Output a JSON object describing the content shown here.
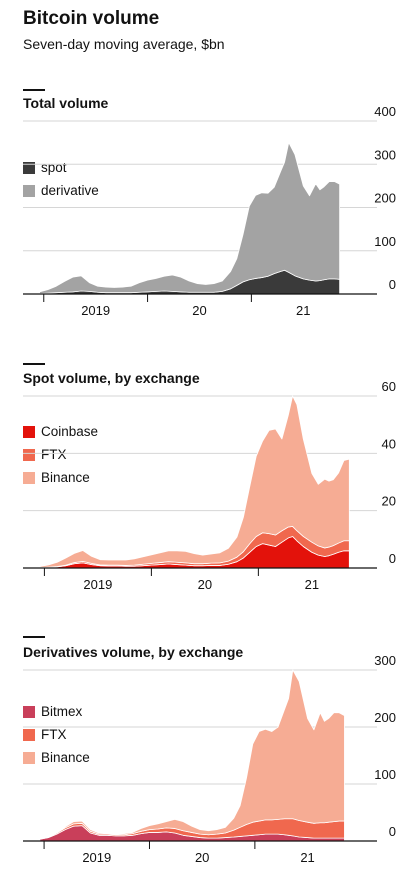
{
  "title": "Bitcoin volume",
  "subtitle": "Seven-day moving average, $bn",
  "colors": {
    "spot": "#3a3a3a",
    "derivative": "#a3a3a3",
    "coinbase": "#e3120b",
    "ftx": "#f0684e",
    "binance": "#f6ac94",
    "bitmex": "#c93f5a",
    "grid": "#d6d6d6",
    "axis": "#121212"
  },
  "chart_data": [
    {
      "type": "area",
      "stacked": true,
      "title": "Total volume",
      "x": [
        2018.96,
        2019.04,
        2019.12,
        2019.2,
        2019.28,
        2019.36,
        2019.44,
        2019.52,
        2019.6,
        2019.68,
        2019.76,
        2019.84,
        2019.92,
        2020.0,
        2020.08,
        2020.16,
        2020.24,
        2020.32,
        2020.4,
        2020.48,
        2020.56,
        2020.64,
        2020.72,
        2020.8,
        2020.86,
        2020.92,
        2020.98,
        2021.04,
        2021.1,
        2021.16,
        2021.22,
        2021.28,
        2021.32,
        2021.36,
        2021.42,
        2021.5,
        2021.56,
        2021.62,
        2021.66,
        2021.7,
        2021.75,
        2021.8,
        2021.85
      ],
      "series": [
        {
          "name": "spot",
          "color_key": "spot",
          "values": [
            1,
            2,
            3,
            4,
            5,
            7,
            6,
            4,
            3,
            3,
            3,
            3,
            4,
            5,
            6,
            7,
            6,
            5,
            4,
            4,
            4,
            4,
            6,
            12,
            20,
            28,
            33,
            36,
            38,
            41,
            47,
            52,
            55,
            50,
            42,
            35,
            32,
            30,
            31,
            33,
            35,
            35,
            34
          ]
        },
        {
          "name": "derivative",
          "color_key": "derivative",
          "values": [
            4,
            8,
            15,
            25,
            34,
            35,
            20,
            14,
            13,
            12,
            13,
            15,
            22,
            27,
            30,
            34,
            38,
            34,
            26,
            20,
            18,
            20,
            24,
            40,
            62,
            110,
            170,
            192,
            196,
            192,
            200,
            230,
            250,
            300,
            280,
            215,
            195,
            225,
            210,
            215,
            225,
            225,
            220
          ]
        }
      ],
      "xticks": [
        {
          "label": "2019",
          "pos": 2019.5
        },
        {
          "label": "20",
          "pos": 2020.5
        },
        {
          "label": "21",
          "pos": 2021.5
        }
      ],
      "xboundaries": [
        2019.0,
        2020.0,
        2021.0
      ],
      "xlim": [
        2018.8,
        2021.95
      ],
      "ylim": [
        0,
        400
      ],
      "yticks": [
        0,
        100,
        200,
        300,
        400
      ],
      "grid": true,
      "legend": "top-left",
      "legend_items": [
        {
          "label": "spot",
          "color_key": "spot"
        },
        {
          "label": "derivative",
          "color_key": "derivative"
        }
      ]
    },
    {
      "type": "area",
      "stacked": true,
      "title": "Spot volume, by exchange",
      "x": [
        2018.96,
        2019.04,
        2019.12,
        2019.2,
        2019.28,
        2019.36,
        2019.44,
        2019.52,
        2019.6,
        2019.68,
        2019.76,
        2019.84,
        2019.92,
        2020.0,
        2020.08,
        2020.16,
        2020.24,
        2020.32,
        2020.4,
        2020.48,
        2020.56,
        2020.64,
        2020.72,
        2020.8,
        2020.86,
        2020.92,
        2020.98,
        2021.04,
        2021.1,
        2021.16,
        2021.22,
        2021.28,
        2021.32,
        2021.36,
        2021.42,
        2021.5,
        2021.56,
        2021.62,
        2021.66,
        2021.7,
        2021.75,
        2021.8,
        2021.85
      ],
      "series": [
        {
          "name": "Coinbase",
          "color_key": "coinbase",
          "values": [
            0.1,
            0.2,
            0.4,
            0.8,
            1.5,
            1.8,
            1.2,
            0.8,
            0.7,
            0.7,
            0.6,
            0.6,
            0.8,
            1.0,
            1.2,
            1.4,
            1.2,
            1.0,
            0.8,
            0.8,
            0.9,
            0.9,
            1.3,
            2.2,
            3.5,
            5.5,
            7.5,
            8.5,
            8.0,
            7.5,
            9.0,
            10.5,
            11.0,
            9.5,
            7.5,
            5.5,
            4.5,
            4.0,
            4.3,
            4.8,
            5.5,
            6.0,
            6.0
          ]
        },
        {
          "name": "FTX",
          "color_key": "ftx",
          "values": [
            0.05,
            0.1,
            0.1,
            0.2,
            0.4,
            0.5,
            0.4,
            0.3,
            0.3,
            0.3,
            0.3,
            0.4,
            0.5,
            0.6,
            0.7,
            0.8,
            0.8,
            0.8,
            0.7,
            0.7,
            0.8,
            0.9,
            1.1,
            1.6,
            2.2,
            3.0,
            3.5,
            3.8,
            4.0,
            4.0,
            4.0,
            3.8,
            3.5,
            3.5,
            3.5,
            3.5,
            3.2,
            3.0,
            3.0,
            3.0,
            3.2,
            3.5,
            3.5
          ]
        },
        {
          "name": "Binance",
          "color_key": "binance",
          "values": [
            0.4,
            0.8,
            1.5,
            2.5,
            3.2,
            3.8,
            2.5,
            1.8,
            1.8,
            1.8,
            1.9,
            2.2,
            2.6,
            3.0,
            3.4,
            3.8,
            4.0,
            4.0,
            3.5,
            3.0,
            3.2,
            3.5,
            4.5,
            7.0,
            12.0,
            20.0,
            28.0,
            32.0,
            36.0,
            37.0,
            32.0,
            39.0,
            45.5,
            44.0,
            34.0,
            24.0,
            21.5,
            24.0,
            23.0,
            23.0,
            24.5,
            28.0,
            28.5
          ]
        }
      ],
      "xticks": [
        {
          "label": "2019",
          "pos": 2019.5
        },
        {
          "label": "20",
          "pos": 2020.5
        },
        {
          "label": "21",
          "pos": 2021.5
        }
      ],
      "xboundaries": [
        2019.0,
        2020.0,
        2021.0
      ],
      "xlim": [
        2018.8,
        2021.95
      ],
      "ylim": [
        0,
        60
      ],
      "yticks": [
        0,
        20,
        40,
        60
      ],
      "grid": true,
      "legend": "top-left",
      "legend_items": [
        {
          "label": "Coinbase",
          "color_key": "coinbase"
        },
        {
          "label": "FTX",
          "color_key": "ftx"
        },
        {
          "label": "Binance",
          "color_key": "binance"
        }
      ]
    },
    {
      "type": "area",
      "stacked": true,
      "title": "Derivatives volume, by exchange",
      "x": [
        2018.96,
        2019.04,
        2019.12,
        2019.2,
        2019.28,
        2019.36,
        2019.44,
        2019.52,
        2019.6,
        2019.68,
        2019.76,
        2019.84,
        2019.92,
        2020.0,
        2020.08,
        2020.16,
        2020.24,
        2020.32,
        2020.4,
        2020.48,
        2020.56,
        2020.64,
        2020.72,
        2020.8,
        2020.86,
        2020.92,
        2020.98,
        2021.04,
        2021.1,
        2021.16,
        2021.22,
        2021.28,
        2021.32,
        2021.36,
        2021.42,
        2021.5,
        2021.56,
        2021.62,
        2021.66,
        2021.7,
        2021.75,
        2021.8,
        2021.85
      ],
      "series": [
        {
          "name": "Bitmex",
          "color_key": "bitmex",
          "values": [
            3,
            6,
            12,
            20,
            26,
            27,
            14,
            10,
            10,
            9,
            9,
            10,
            13,
            15,
            15,
            16,
            14,
            10,
            8,
            6,
            5,
            5,
            6,
            7,
            8,
            9,
            10,
            11,
            12,
            12,
            12,
            11,
            10,
            9,
            7,
            6,
            5,
            5,
            5,
            5,
            5,
            5,
            5
          ]
        },
        {
          "name": "FTX",
          "color_key": "ftx",
          "values": [
            0.5,
            1,
            2,
            3,
            4,
            4,
            3,
            2,
            2,
            2,
            2,
            3,
            4,
            5,
            6,
            7,
            8,
            8,
            7,
            6,
            6,
            7,
            8,
            12,
            16,
            20,
            23,
            24,
            25,
            25,
            26,
            28,
            29,
            30,
            29,
            27,
            26,
            27,
            27,
            28,
            29,
            30,
            30
          ]
        },
        {
          "name": "Binance",
          "color_key": "binance",
          "values": [
            0.5,
            1,
            1,
            2,
            4,
            4,
            3,
            2,
            1,
            1,
            2,
            2,
            5,
            7,
            9,
            11,
            16,
            16,
            11,
            8,
            7,
            8,
            10,
            21,
            38,
            81,
            137,
            157,
            159,
            155,
            162,
            191,
            211,
            261,
            244,
            182,
            164,
            193,
            178,
            182,
            191,
            190,
            185
          ]
        }
      ],
      "xticks": [
        {
          "label": "2019",
          "pos": 2019.5
        },
        {
          "label": "20",
          "pos": 2020.5
        },
        {
          "label": "21",
          "pos": 2021.5
        }
      ],
      "xboundaries": [
        2019.0,
        2020.0,
        2021.0
      ],
      "xlim": [
        2018.8,
        2021.95
      ],
      "ylim": [
        0,
        300
      ],
      "yticks": [
        0,
        100,
        200,
        300
      ],
      "grid": true,
      "legend": "top-left",
      "legend_items": [
        {
          "label": "Bitmex",
          "color_key": "bitmex"
        },
        {
          "label": "FTX",
          "color_key": "ftx"
        },
        {
          "label": "Binance",
          "color_key": "binance"
        }
      ]
    }
  ]
}
